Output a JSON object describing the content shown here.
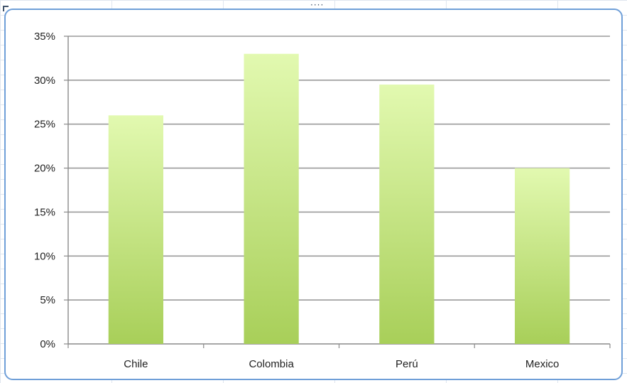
{
  "colors": {
    "bar_top": "#e2f9b0",
    "bar_bottom": "#a8cf59",
    "grid": "#9a9a9a",
    "axis": "#8a8a8a",
    "frame": "#6f9fd8"
  },
  "chart_data": {
    "type": "bar",
    "categories": [
      "Chile",
      "Colombia",
      "Perú",
      "Mexico"
    ],
    "values": [
      0.26,
      0.33,
      0.295,
      0.2
    ],
    "ylim": [
      0,
      0.35
    ],
    "yticks": [
      0,
      0.05,
      0.1,
      0.15,
      0.2,
      0.25,
      0.3,
      0.35
    ],
    "ytick_labels": [
      "0%",
      "5%",
      "10%",
      "15%",
      "20%",
      "25%",
      "30%",
      "35%"
    ],
    "title": "",
    "xlabel": "",
    "ylabel": "",
    "grid": true,
    "legend": "none"
  }
}
